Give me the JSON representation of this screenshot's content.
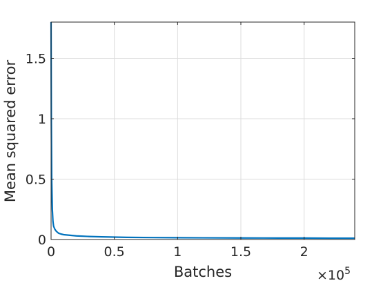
{
  "chart_data": {
    "type": "line",
    "title": "",
    "xlabel": "Batches",
    "ylabel": "Mean squared error",
    "x_exponent_label": {
      "base": "×10",
      "power": "5"
    },
    "xlim": [
      0,
      240000
    ],
    "ylim": [
      0,
      1.8
    ],
    "xticks": [
      0,
      50000,
      100000,
      150000,
      200000
    ],
    "xtick_labels": [
      "0",
      "0.5",
      "1",
      "1.5",
      "2"
    ],
    "yticks": [
      0,
      0.5,
      1,
      1.5
    ],
    "ytick_labels": [
      "0",
      "0.5",
      "1",
      "1.5"
    ],
    "grid": true,
    "series": [
      {
        "color": "#0072BD",
        "x": [
          0,
          200,
          500,
          1000,
          1500,
          2000,
          3000,
          4000,
          5000,
          6000,
          8000,
          10000,
          15000,
          20000,
          30000,
          40000,
          50000,
          60000,
          80000,
          100000,
          120000,
          150000,
          180000,
          200000,
          220000,
          240000
        ],
        "y": [
          1.8,
          1.0,
          0.5,
          0.25,
          0.15,
          0.11,
          0.085,
          0.07,
          0.06,
          0.052,
          0.045,
          0.04,
          0.035,
          0.03,
          0.025,
          0.022,
          0.02,
          0.018,
          0.016,
          0.015,
          0.014,
          0.013,
          0.012,
          0.012,
          0.011,
          0.011
        ]
      }
    ]
  }
}
